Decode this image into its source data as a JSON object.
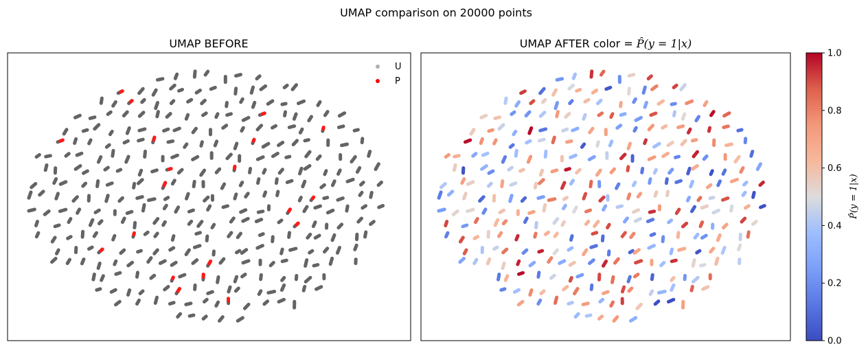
{
  "figure": {
    "suptitle": "UMAP comparison on 20000 points"
  },
  "chart_data": [
    {
      "type": "scatter",
      "title": "UMAP BEFORE",
      "xlabel": "",
      "ylabel": "",
      "grid": false,
      "ticks": false,
      "legend": {
        "placement": "top-right",
        "entries": [
          {
            "label": "U",
            "color": "#b0b0b0"
          },
          {
            "label": "P",
            "color": "#ff0000"
          }
        ]
      },
      "colors": {
        "U": "#646464",
        "P": "#ff1a1a"
      },
      "note_positive_cluster_count": 20
    },
    {
      "type": "scatter",
      "title": "UMAP AFTER   color = ",
      "title_math": "P̂(y = 1|x)",
      "xlabel": "",
      "ylabel": "",
      "grid": false,
      "ticks": false,
      "colormap": "coolwarm",
      "colorbar": {
        "label": "P̂(y = 1|x)",
        "range": [
          0.0,
          1.0
        ],
        "ticks": [
          "0.0",
          "0.2",
          "0.4",
          "0.6",
          "0.8",
          "1.0"
        ]
      }
    }
  ]
}
